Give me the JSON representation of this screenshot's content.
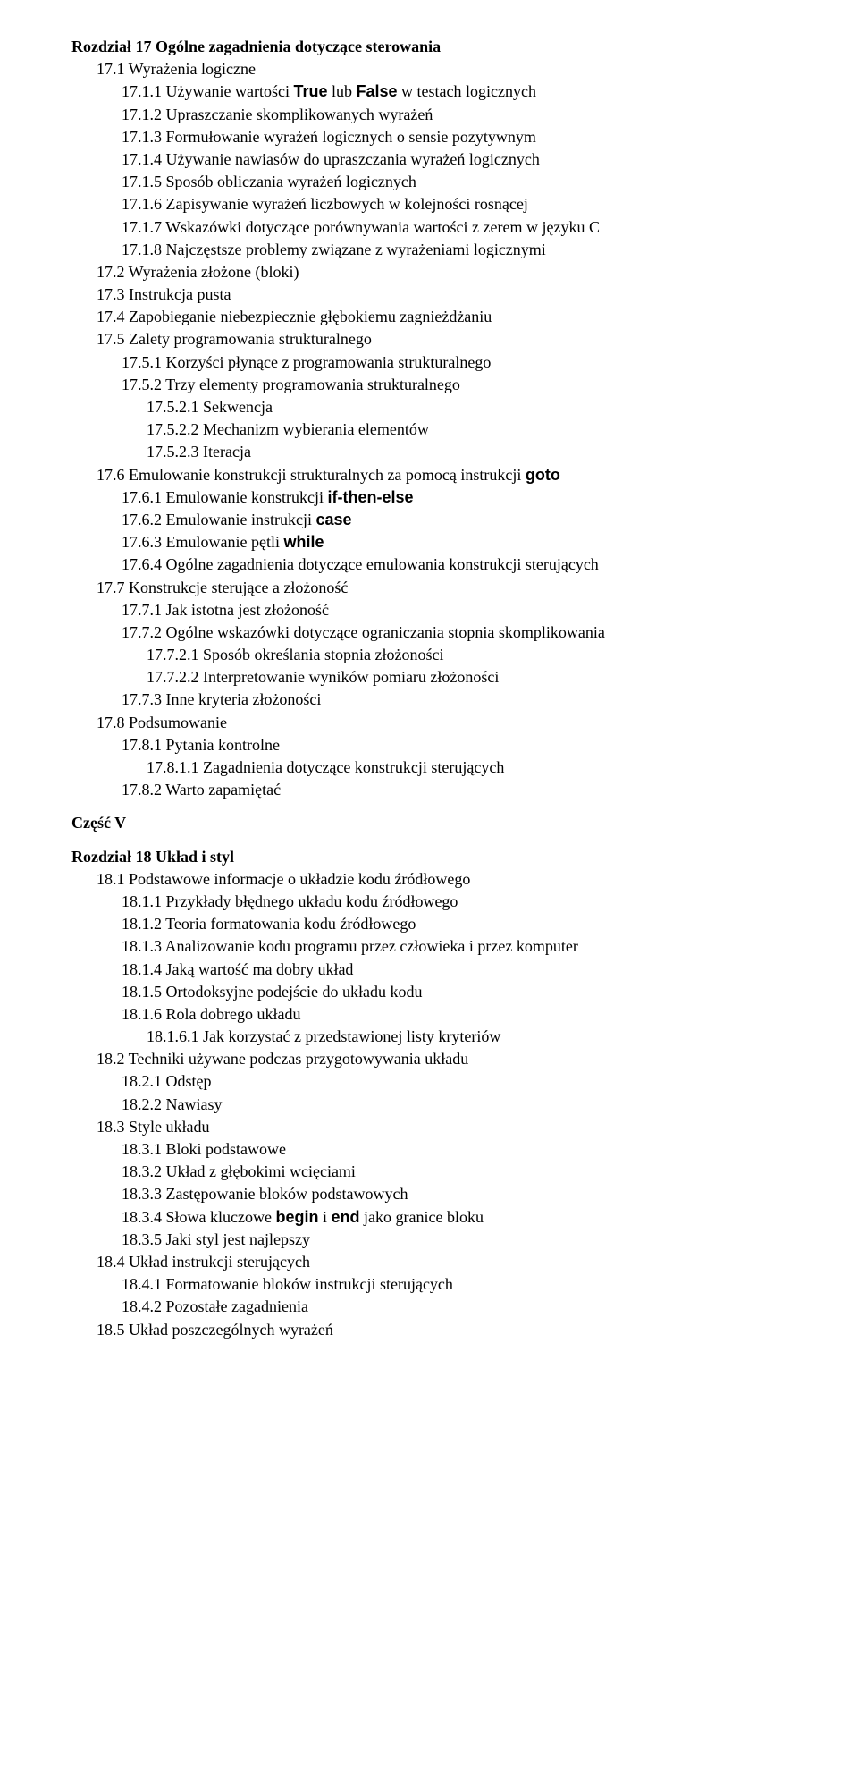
{
  "fonts": {
    "body_family": "Times New Roman, Times, serif",
    "body_size_pt": 14,
    "code_family": "Arial, Helvetica, sans-serif",
    "code_weight": "bold"
  },
  "colors": {
    "text": "#000000",
    "background": "#ffffff"
  },
  "lines": [
    {
      "level": 0,
      "bold": true,
      "segments": [
        {
          "t": "Rozdział 17 Ogólne zagadnienia dotyczące sterowania"
        }
      ]
    },
    {
      "level": 1,
      "bold": false,
      "segments": [
        {
          "t": "17.1   Wyrażenia logiczne"
        }
      ]
    },
    {
      "level": 2,
      "bold": false,
      "segments": [
        {
          "t": "17.1.1  Używanie wartości "
        },
        {
          "t": "True",
          "code": true
        },
        {
          "t": " lub "
        },
        {
          "t": "False",
          "code": true
        },
        {
          "t": " w testach logicznych"
        }
      ]
    },
    {
      "level": 2,
      "bold": false,
      "segments": [
        {
          "t": "17.1.2  Upraszczanie skomplikowanych wyrażeń"
        }
      ]
    },
    {
      "level": 2,
      "bold": false,
      "segments": [
        {
          "t": "17.1.3  Formułowanie wyrażeń logicznych o sensie pozytywnym"
        }
      ]
    },
    {
      "level": 2,
      "bold": false,
      "segments": [
        {
          "t": "17.1.4  Używanie nawiasów do upraszczania wyrażeń logicznych"
        }
      ]
    },
    {
      "level": 2,
      "bold": false,
      "segments": [
        {
          "t": "17.1.5  Sposób obliczania wyrażeń logicznych"
        }
      ]
    },
    {
      "level": 2,
      "bold": false,
      "segments": [
        {
          "t": "17.1.6  Zapisywanie wyrażeń liczbowych w kolejności rosnącej"
        }
      ]
    },
    {
      "level": 2,
      "bold": false,
      "segments": [
        {
          "t": "17.1.7  Wskazówki dotyczące porównywania wartości z zerem w języku C"
        }
      ]
    },
    {
      "level": 2,
      "bold": false,
      "segments": [
        {
          "t": "17.1.8  Najczęstsze problemy związane z wyrażeniami logicznymi"
        }
      ]
    },
    {
      "level": 1,
      "bold": false,
      "segments": [
        {
          "t": "17.2   Wyrażenia złożone (bloki)"
        }
      ]
    },
    {
      "level": 1,
      "bold": false,
      "segments": [
        {
          "t": "17.3   Instrukcja pusta"
        }
      ]
    },
    {
      "level": 1,
      "bold": false,
      "segments": [
        {
          "t": "17.4   Zapobieganie niebezpiecznie głębokiemu zagnieżdżaniu"
        }
      ]
    },
    {
      "level": 1,
      "bold": false,
      "segments": [
        {
          "t": "17.5   Zalety programowania strukturalnego"
        }
      ]
    },
    {
      "level": 2,
      "bold": false,
      "segments": [
        {
          "t": "17.5.1  Korzyści płynące z programowania strukturalnego"
        }
      ]
    },
    {
      "level": 2,
      "bold": false,
      "segments": [
        {
          "t": "17.5.2  Trzy elementy programowania strukturalnego"
        }
      ]
    },
    {
      "level": 3,
      "bold": false,
      "segments": [
        {
          "t": "17.5.2.1 Sekwencja"
        }
      ]
    },
    {
      "level": 3,
      "bold": false,
      "segments": [
        {
          "t": "17.5.2.2 Mechanizm wybierania elementów"
        }
      ]
    },
    {
      "level": 3,
      "bold": false,
      "segments": [
        {
          "t": "17.5.2.3 Iteracja"
        }
      ]
    },
    {
      "level": 1,
      "bold": false,
      "segments": [
        {
          "t": "17.6   Emulowanie konstrukcji strukturalnych za pomocą instrukcji "
        },
        {
          "t": "goto",
          "code": true
        }
      ]
    },
    {
      "level": 2,
      "bold": false,
      "segments": [
        {
          "t": "17.6.1  Emulowanie konstrukcji "
        },
        {
          "t": "if-then-else",
          "code": true
        }
      ]
    },
    {
      "level": 2,
      "bold": false,
      "segments": [
        {
          "t": "17.6.2  Emulowanie instrukcji "
        },
        {
          "t": "case",
          "code": true
        }
      ]
    },
    {
      "level": 2,
      "bold": false,
      "segments": [
        {
          "t": "17.6.3  Emulowanie pętli "
        },
        {
          "t": "while",
          "code": true
        }
      ]
    },
    {
      "level": 2,
      "bold": false,
      "segments": [
        {
          "t": "17.6.4  Ogólne zagadnienia dotyczące emulowania konstrukcji sterujących"
        }
      ]
    },
    {
      "level": 1,
      "bold": false,
      "segments": [
        {
          "t": "17.7   Konstrukcje sterujące a złożoność"
        }
      ]
    },
    {
      "level": 2,
      "bold": false,
      "segments": [
        {
          "t": "17.7.1  Jak istotna jest złożoność"
        }
      ]
    },
    {
      "level": 2,
      "bold": false,
      "segments": [
        {
          "t": "17.7.2  Ogólne wskazówki dotyczące ograniczania stopnia skomplikowania"
        }
      ]
    },
    {
      "level": 3,
      "bold": false,
      "segments": [
        {
          "t": "17.7.2.1 Sposób określania stopnia złożoności"
        }
      ]
    },
    {
      "level": 3,
      "bold": false,
      "segments": [
        {
          "t": "17.7.2.2 Interpretowanie wyników pomiaru złożoności"
        }
      ]
    },
    {
      "level": 2,
      "bold": false,
      "segments": [
        {
          "t": "17.7.3  Inne kryteria złożoności"
        }
      ]
    },
    {
      "level": 1,
      "bold": false,
      "segments": [
        {
          "t": "17.8   Podsumowanie"
        }
      ]
    },
    {
      "level": 2,
      "bold": false,
      "segments": [
        {
          "t": "17.8.1  Pytania kontrolne"
        }
      ]
    },
    {
      "level": 3,
      "bold": false,
      "segments": [
        {
          "t": "17.8.1.1 Zagadnienia dotyczące konstrukcji sterujących"
        }
      ]
    },
    {
      "level": 2,
      "bold": false,
      "segments": [
        {
          "t": "17.8.2  Warto zapamiętać"
        }
      ]
    },
    {
      "level": 0,
      "bold": true,
      "spacer_before": true,
      "segments": [
        {
          "t": "Część V"
        }
      ]
    },
    {
      "level": 0,
      "bold": true,
      "spacer_before": true,
      "segments": [
        {
          "t": "Rozdział 18 Układ i styl"
        }
      ]
    },
    {
      "level": 1,
      "bold": false,
      "segments": [
        {
          "t": "18.1   Podstawowe informacje o układzie kodu źródłowego"
        }
      ]
    },
    {
      "level": 2,
      "bold": false,
      "segments": [
        {
          "t": "18.1.1  Przykłady błędnego układu kodu źródłowego"
        }
      ]
    },
    {
      "level": 2,
      "bold": false,
      "segments": [
        {
          "t": "18.1.2  Teoria formatowania kodu źródłowego"
        }
      ]
    },
    {
      "level": 2,
      "bold": false,
      "segments": [
        {
          "t": "18.1.3  Analizowanie kodu programu przez człowieka i przez komputer"
        }
      ]
    },
    {
      "level": 2,
      "bold": false,
      "segments": [
        {
          "t": "18.1.4  Jaką wartość ma dobry układ"
        }
      ]
    },
    {
      "level": 2,
      "bold": false,
      "segments": [
        {
          "t": "18.1.5  Ortodoksyjne podejście do układu kodu"
        }
      ]
    },
    {
      "level": 2,
      "bold": false,
      "segments": [
        {
          "t": "18.1.6  Rola dobrego układu"
        }
      ]
    },
    {
      "level": 3,
      "bold": false,
      "segments": [
        {
          "t": "18.1.6.1 Jak korzystać z przedstawionej listy kryteriów"
        }
      ]
    },
    {
      "level": 1,
      "bold": false,
      "segments": [
        {
          "t": "18.2   Techniki używane podczas przygotowywania układu"
        }
      ]
    },
    {
      "level": 2,
      "bold": false,
      "segments": [
        {
          "t": "18.2.1  Odstęp"
        }
      ]
    },
    {
      "level": 2,
      "bold": false,
      "segments": [
        {
          "t": "18.2.2  Nawiasy"
        }
      ]
    },
    {
      "level": 1,
      "bold": false,
      "segments": [
        {
          "t": "18.3   Style układu"
        }
      ]
    },
    {
      "level": 2,
      "bold": false,
      "segments": [
        {
          "t": "18.3.1  Bloki podstawowe"
        }
      ]
    },
    {
      "level": 2,
      "bold": false,
      "segments": [
        {
          "t": "18.3.2  Układ z głębokimi wcięciami"
        }
      ]
    },
    {
      "level": 2,
      "bold": false,
      "segments": [
        {
          "t": "18.3.3  Zastępowanie bloków podstawowych"
        }
      ]
    },
    {
      "level": 2,
      "bold": false,
      "segments": [
        {
          "t": "18.3.4  Słowa kluczowe "
        },
        {
          "t": "begin",
          "code": true
        },
        {
          "t": " i "
        },
        {
          "t": "end",
          "code": true
        },
        {
          "t": " jako granice bloku"
        }
      ]
    },
    {
      "level": 2,
      "bold": false,
      "segments": [
        {
          "t": "18.3.5  Jaki styl jest najlepszy"
        }
      ]
    },
    {
      "level": 1,
      "bold": false,
      "segments": [
        {
          "t": "18.4   Układ instrukcji sterujących"
        }
      ]
    },
    {
      "level": 2,
      "bold": false,
      "segments": [
        {
          "t": "18.4.1  Formatowanie bloków instrukcji sterujących"
        }
      ]
    },
    {
      "level": 2,
      "bold": false,
      "segments": [
        {
          "t": "18.4.2  Pozostałe zagadnienia"
        }
      ]
    },
    {
      "level": 1,
      "bold": false,
      "segments": [
        {
          "t": "18.5   Układ poszczególnych wyrażeń"
        }
      ]
    }
  ]
}
